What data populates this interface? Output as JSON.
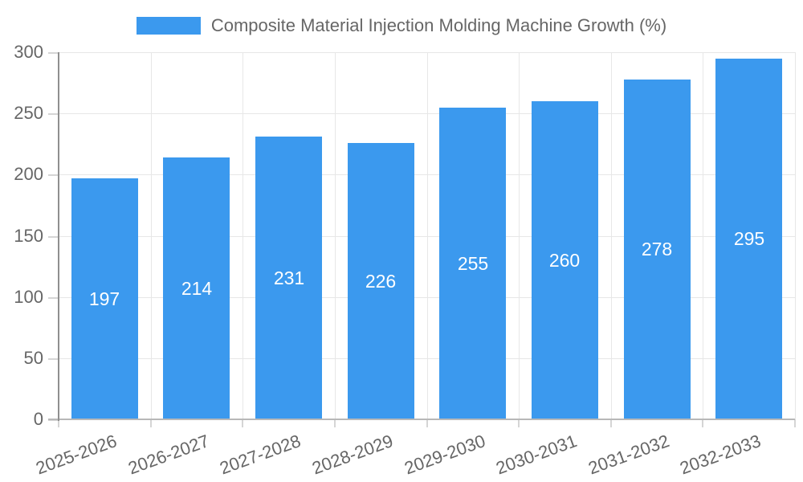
{
  "legend": {
    "label": "Composite Material Injection Molding Machine Growth (%)"
  },
  "chart_data": {
    "type": "bar",
    "title": "Composite Material Injection Molding Machine Growth (%)",
    "categories": [
      "2025-2026",
      "2026-2027",
      "2027-2028",
      "2028-2029",
      "2029-2030",
      "2030-2031",
      "2031-2032",
      "2032-2033"
    ],
    "values": [
      197,
      214,
      231,
      226,
      255,
      260,
      278,
      295
    ],
    "xlabel": "",
    "ylabel": "",
    "ylim": [
      0,
      300
    ],
    "yticks": [
      0,
      50,
      100,
      150,
      200,
      250,
      300
    ],
    "grid": true,
    "legend_position": "top-center",
    "x_tick_rotation_deg": -20,
    "bar_color": "#3b99ee",
    "value_label_color": "#ffffff",
    "axis_text_color": "#666666"
  }
}
